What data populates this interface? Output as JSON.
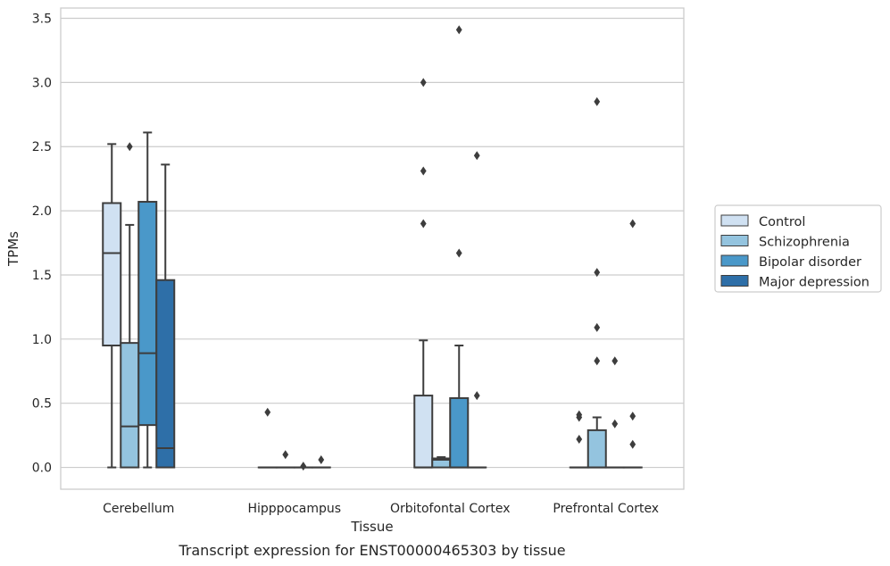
{
  "caption": "Transcript expression for ENST00000465303 by tissue",
  "chart_data": {
    "type": "box",
    "xlabel": "Tissue",
    "ylabel": "TPMs",
    "ylim": [
      -0.17,
      3.58
    ],
    "yticks": [
      "0.0",
      "0.5",
      "1.0",
      "1.5",
      "2.0",
      "2.5",
      "3.0",
      "3.5"
    ],
    "grid": "horizontal",
    "legend_position": "right",
    "categories": [
      "Cerebellum",
      "Hipppocampus",
      "Orbitofontal Cortex",
      "Prefrontal Cortex"
    ],
    "series": [
      {
        "name": "Control",
        "color": "#d0e1f2",
        "boxes": [
          {
            "q1": 0.95,
            "median": 1.67,
            "q3": 2.06,
            "whisker_low": 0.0,
            "whisker_high": 2.52,
            "outliers": []
          },
          {
            "q1": 0.0,
            "median": 0.0,
            "q3": 0.0,
            "whisker_low": 0.0,
            "whisker_high": 0.0,
            "outliers": [
              0.43
            ]
          },
          {
            "q1": 0.0,
            "median": 0.0,
            "q3": 0.56,
            "whisker_low": 0.0,
            "whisker_high": 0.99,
            "outliers": [
              1.9,
              2.31,
              3.0
            ]
          },
          {
            "q1": 0.0,
            "median": 0.0,
            "q3": 0.0,
            "whisker_low": 0.0,
            "whisker_high": 0.0,
            "outliers": [
              0.22,
              0.39,
              0.41
            ]
          }
        ]
      },
      {
        "name": "Schizophrenia",
        "color": "#94c4df",
        "boxes": [
          {
            "q1": 0.0,
            "median": 0.32,
            "q3": 0.97,
            "whisker_low": 0.0,
            "whisker_high": 1.89,
            "outliers": [
              2.5
            ]
          },
          {
            "q1": 0.0,
            "median": 0.0,
            "q3": 0.0,
            "whisker_low": 0.0,
            "whisker_high": 0.0,
            "outliers": [
              0.1
            ]
          },
          {
            "q1": 0.0,
            "median": 0.06,
            "q3": 0.07,
            "whisker_low": 0.0,
            "whisker_high": 0.08,
            "outliers": []
          },
          {
            "q1": 0.0,
            "median": 0.0,
            "q3": 0.29,
            "whisker_low": 0.0,
            "whisker_high": 0.39,
            "outliers": [
              0.83,
              1.09,
              1.52,
              2.85
            ]
          }
        ]
      },
      {
        "name": "Bipolar disorder",
        "color": "#4a98c9",
        "boxes": [
          {
            "q1": 0.33,
            "median": 0.89,
            "q3": 2.07,
            "whisker_low": 0.0,
            "whisker_high": 2.61,
            "outliers": []
          },
          {
            "q1": 0.0,
            "median": 0.0,
            "q3": 0.0,
            "whisker_low": 0.0,
            "whisker_high": 0.0,
            "outliers": [
              0.01
            ]
          },
          {
            "q1": 0.0,
            "median": 0.0,
            "q3": 0.54,
            "whisker_low": 0.0,
            "whisker_high": 0.95,
            "outliers": [
              1.67,
              3.41
            ]
          },
          {
            "q1": 0.0,
            "median": 0.0,
            "q3": 0.0,
            "whisker_low": 0.0,
            "whisker_high": 0.0,
            "outliers": [
              0.34,
              0.83
            ]
          }
        ]
      },
      {
        "name": "Major depression",
        "color": "#2e6fa8",
        "boxes": [
          {
            "q1": 0.0,
            "median": 0.15,
            "q3": 1.46,
            "whisker_low": 0.0,
            "whisker_high": 2.36,
            "outliers": []
          },
          {
            "q1": 0.0,
            "median": 0.0,
            "q3": 0.0,
            "whisker_low": 0.0,
            "whisker_high": 0.0,
            "outliers": [
              0.06
            ]
          },
          {
            "q1": 0.0,
            "median": 0.0,
            "q3": 0.0,
            "whisker_low": 0.0,
            "whisker_high": 0.0,
            "outliers": [
              0.56,
              2.43
            ]
          },
          {
            "q1": 0.0,
            "median": 0.0,
            "q3": 0.0,
            "whisker_low": 0.0,
            "whisker_high": 0.0,
            "outliers": [
              0.18,
              0.4,
              1.9
            ]
          }
        ]
      }
    ]
  }
}
